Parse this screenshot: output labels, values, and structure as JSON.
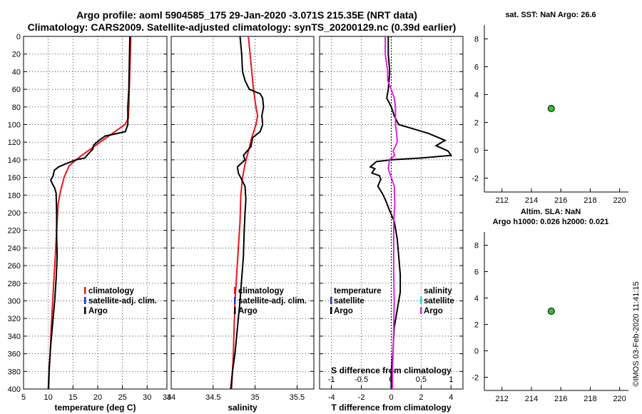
{
  "title": {
    "line1": "Argo profile: aoml 5904585_175 29-Jan-2020 -3.071S 215.35E (NRT data)",
    "line2": "Climatology: CARS2009. Satellite-adjusted climatology: synTS_20200129.nc (0.39d earlier)"
  },
  "stamp": "©IMOS 03-Feb-2020 11:41:15",
  "colors": {
    "argo": "#000000",
    "clim": "#e8141b",
    "sat": "#1c2bd6",
    "s_diff": "#e020e0",
    "sat_s": "#2ad6d6",
    "marker": "#2ec02e"
  },
  "chart_data": [
    {
      "id": "temperature",
      "type": "line",
      "xlabel": "temperature (deg C)",
      "ylabel": "",
      "xlim": [
        5,
        34
      ],
      "ylim": [
        400,
        0
      ],
      "xticks": [
        5,
        10,
        15,
        20,
        25,
        30,
        34
      ],
      "yticks": [
        0,
        20,
        40,
        60,
        80,
        100,
        120,
        140,
        160,
        180,
        200,
        220,
        240,
        260,
        280,
        300,
        320,
        340,
        360,
        380,
        400
      ],
      "grid": true,
      "legend": {
        "position": "lower-right",
        "entries": [
          "climatology",
          "satellite-adj. clim.",
          "Argo"
        ]
      },
      "series": [
        {
          "name": "climatology",
          "color": "clim",
          "points": [
            [
              26.7,
              0
            ],
            [
              26.6,
              20
            ],
            [
              26.5,
              40
            ],
            [
              26.4,
              60
            ],
            [
              26.3,
              80
            ],
            [
              26.2,
              93
            ],
            [
              25.5,
              100
            ],
            [
              22.5,
              112
            ],
            [
              19.5,
              124
            ],
            [
              16.5,
              136
            ],
            [
              14.2,
              147
            ],
            [
              13.2,
              160
            ],
            [
              12.5,
              175
            ],
            [
              12.0,
              190
            ],
            [
              11.8,
              210
            ],
            [
              11.5,
              240
            ],
            [
              11.2,
              270
            ],
            [
              10.9,
              300
            ],
            [
              10.6,
              330
            ],
            [
              10.4,
              360
            ],
            [
              10.2,
              380
            ],
            [
              10.1,
              400
            ]
          ]
        },
        {
          "name": "Argo",
          "color": "argo",
          "points": [
            [
              26.5,
              0
            ],
            [
              26.4,
              30
            ],
            [
              26.3,
              60
            ],
            [
              26.1,
              80
            ],
            [
              26.1,
              100
            ],
            [
              25.6,
              108
            ],
            [
              24.0,
              110
            ],
            [
              21.5,
              113
            ],
            [
              20.3,
              118
            ],
            [
              19.2,
              123
            ],
            [
              19.0,
              128
            ],
            [
              18.3,
              132
            ],
            [
              17.4,
              138
            ],
            [
              15.6,
              140
            ],
            [
              13.8,
              144
            ],
            [
              12.1,
              148
            ],
            [
              11.2,
              152
            ],
            [
              11.0,
              158
            ],
            [
              10.5,
              163
            ],
            [
              10.9,
              168
            ],
            [
              11.3,
              172
            ],
            [
              11.6,
              178
            ],
            [
              11.7,
              200
            ],
            [
              11.7,
              225
            ],
            [
              11.8,
              250
            ],
            [
              11.6,
              275
            ],
            [
              11.3,
              300
            ],
            [
              10.9,
              325
            ],
            [
              10.5,
              350
            ],
            [
              10.2,
              375
            ],
            [
              10.0,
              400
            ]
          ]
        }
      ]
    },
    {
      "id": "salinity",
      "type": "line",
      "xlabel": "salinity",
      "ylabel": "",
      "xlim": [
        34,
        35.7
      ],
      "ylim": [
        400,
        0
      ],
      "xticks": [
        34,
        34.5,
        35,
        35.5
      ],
      "yticks": [
        0,
        20,
        40,
        60,
        80,
        100,
        120,
        140,
        160,
        180,
        200,
        220,
        240,
        260,
        280,
        300,
        320,
        340,
        360,
        380,
        400
      ],
      "grid": true,
      "legend": {
        "position": "lower-right",
        "entries": [
          "climatology",
          "satellite-adj. clim.",
          "Argo"
        ]
      },
      "series": [
        {
          "name": "climatology",
          "color": "clim",
          "points": [
            [
              34.92,
              0
            ],
            [
              34.95,
              30
            ],
            [
              34.98,
              60
            ],
            [
              35.01,
              80
            ],
            [
              35.03,
              90
            ],
            [
              35.01,
              100
            ],
            [
              34.96,
              115
            ],
            [
              34.92,
              130
            ],
            [
              34.88,
              145
            ],
            [
              34.85,
              160
            ],
            [
              34.83,
              180
            ],
            [
              34.82,
              210
            ],
            [
              34.8,
              240
            ],
            [
              34.78,
              270
            ],
            [
              34.76,
              300
            ],
            [
              34.75,
              330
            ],
            [
              34.74,
              360
            ],
            [
              34.73,
              380
            ],
            [
              34.72,
              400
            ]
          ]
        },
        {
          "name": "Argo",
          "color": "argo",
          "points": [
            [
              34.82,
              0
            ],
            [
              34.84,
              20
            ],
            [
              34.85,
              40
            ],
            [
              34.88,
              50
            ],
            [
              34.93,
              60
            ],
            [
              35.06,
              65
            ],
            [
              35.09,
              70
            ],
            [
              35.1,
              80
            ],
            [
              35.08,
              90
            ],
            [
              35.09,
              100
            ],
            [
              35.06,
              108
            ],
            [
              34.97,
              115
            ],
            [
              34.95,
              125
            ],
            [
              34.86,
              135
            ],
            [
              34.88,
              140
            ],
            [
              34.79,
              148
            ],
            [
              34.8,
              155
            ],
            [
              34.88,
              170
            ],
            [
              34.89,
              185
            ],
            [
              34.88,
              200
            ],
            [
              34.87,
              220
            ],
            [
              34.86,
              250
            ],
            [
              34.84,
              275
            ],
            [
              34.82,
              300
            ],
            [
              34.79,
              330
            ],
            [
              34.76,
              360
            ],
            [
              34.73,
              380
            ],
            [
              34.71,
              400
            ]
          ]
        }
      ]
    },
    {
      "id": "difference",
      "type": "line",
      "xlabel": "T difference from climatology",
      "x2label": "S difference from climatology",
      "ylabel": "",
      "xlim": [
        -4.8,
        4.8
      ],
      "x2lim": [
        -1.2,
        1.2
      ],
      "ylim": [
        400,
        0
      ],
      "xticks": [
        -4,
        -2,
        0,
        2,
        4
      ],
      "x2ticks": [
        -1,
        -0.5,
        0,
        0.5,
        1
      ],
      "yticks": [
        0,
        20,
        40,
        60,
        80,
        100,
        120,
        140,
        160,
        180,
        200,
        220,
        240,
        260,
        280,
        300,
        320,
        340,
        360,
        380,
        400
      ],
      "grid": true,
      "legend": {
        "position": "lower",
        "entries": [
          "temperature",
          "satellite",
          "Argo",
          "salinity",
          "satellite",
          "Argo"
        ]
      },
      "series": [
        {
          "name": "T difference (Argo)",
          "axis": "T",
          "color": "argo",
          "points": [
            [
              -0.2,
              0
            ],
            [
              -0.2,
              20
            ],
            [
              -0.1,
              40
            ],
            [
              -0.2,
              60
            ],
            [
              -0.3,
              70
            ],
            [
              0.0,
              80
            ],
            [
              0.2,
              90
            ],
            [
              0.4,
              97
            ],
            [
              0.5,
              100
            ],
            [
              1.5,
              105
            ],
            [
              2.5,
              110
            ],
            [
              3.6,
              118
            ],
            [
              3.0,
              124
            ],
            [
              3.8,
              130
            ],
            [
              4.0,
              135
            ],
            [
              2.0,
              138
            ],
            [
              0.0,
              140
            ],
            [
              -1.0,
              142
            ],
            [
              -1.2,
              145
            ],
            [
              -1.4,
              148
            ],
            [
              -1.1,
              150
            ],
            [
              -1.3,
              155
            ],
            [
              -0.8,
              158
            ],
            [
              -0.7,
              162
            ],
            [
              -0.9,
              170
            ],
            [
              -0.6,
              178
            ],
            [
              -0.4,
              185
            ],
            [
              -0.1,
              198
            ],
            [
              0.2,
              210
            ],
            [
              0.4,
              230
            ],
            [
              0.5,
              250
            ],
            [
              0.6,
              270
            ],
            [
              0.6,
              290
            ],
            [
              0.4,
              310
            ],
            [
              0.2,
              330
            ],
            [
              0.1,
              360
            ],
            [
              0.0,
              380
            ],
            [
              0.0,
              400
            ]
          ]
        },
        {
          "name": "S difference (Argo)",
          "axis": "S",
          "color": "s_diff",
          "points": [
            [
              -0.1,
              0
            ],
            [
              -0.1,
              20
            ],
            [
              -0.06,
              40
            ],
            [
              -0.06,
              50
            ],
            [
              0.0,
              60
            ],
            [
              0.05,
              70
            ],
            [
              0.07,
              80
            ],
            [
              0.07,
              100
            ],
            [
              0.09,
              110
            ],
            [
              0.1,
              120
            ],
            [
              0.03,
              130
            ],
            [
              0.06,
              135
            ],
            [
              -0.03,
              140
            ],
            [
              -0.05,
              150
            ],
            [
              0.0,
              160
            ],
            [
              0.05,
              170
            ],
            [
              0.06,
              190
            ],
            [
              0.04,
              210
            ],
            [
              0.04,
              240
            ],
            [
              0.04,
              270
            ],
            [
              0.05,
              300
            ],
            [
              0.04,
              330
            ],
            [
              0.03,
              360
            ],
            [
              0.02,
              380
            ],
            [
              0.02,
              400
            ]
          ]
        }
      ]
    },
    {
      "id": "sst",
      "type": "scatter",
      "title": "sat. SST: NaN Argo: 26.6",
      "xlabel": "",
      "ylabel": "",
      "xlim": [
        210.8,
        220.6
      ],
      "ylim": [
        -3,
        9
      ],
      "xticks": [
        212,
        214,
        216,
        218,
        220
      ],
      "yticks": [
        -2,
        0,
        2,
        4,
        6,
        8
      ],
      "grid": false,
      "points": [
        [
          215.35,
          3.0
        ]
      ]
    },
    {
      "id": "sla",
      "type": "scatter",
      "title": "Altim. SLA: NaN",
      "subtitle": "Argo h1000: 0.026 h2000: 0.021",
      "xlabel": "",
      "ylabel": "",
      "xlim": [
        210.8,
        220.6
      ],
      "ylim": [
        -3,
        9
      ],
      "xticks": [
        212,
        214,
        216,
        218,
        220
      ],
      "yticks": [
        -2,
        0,
        2,
        4,
        6,
        8
      ],
      "grid": false,
      "points": [
        [
          215.35,
          3.0
        ]
      ]
    }
  ]
}
